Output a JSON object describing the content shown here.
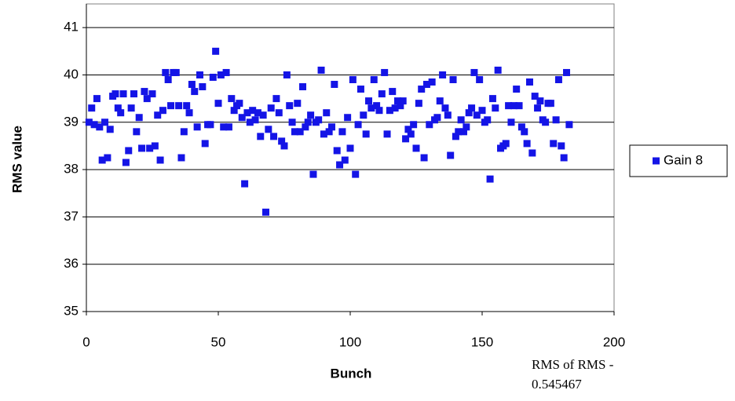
{
  "chart_data": {
    "type": "scatter",
    "x_label": "Bunch",
    "y_label": "RMS value",
    "annotation": [
      "RMS of RMS -",
      "0.545467"
    ],
    "xlim": [
      0,
      200
    ],
    "xticks": [
      0,
      50,
      100,
      150,
      200
    ],
    "ylim": [
      35,
      41.5
    ],
    "yticks": [
      35,
      36,
      37,
      38,
      39,
      40,
      41
    ],
    "grid": true,
    "legend": "right",
    "x": [
      1,
      2,
      3,
      4,
      5,
      6,
      7,
      8,
      9,
      10,
      11,
      12,
      13,
      14,
      15,
      16,
      17,
      18,
      19,
      20,
      21,
      22,
      23,
      24,
      25,
      26,
      27,
      28,
      29,
      30,
      31,
      32,
      33,
      34,
      35,
      36,
      37,
      38,
      39,
      40,
      41,
      42,
      43,
      44,
      45,
      46,
      47,
      48,
      49,
      50,
      51,
      52,
      53,
      54,
      55,
      56,
      57,
      58,
      59,
      60,
      61,
      62,
      63,
      64,
      65,
      66,
      67,
      68,
      69,
      70,
      71,
      72,
      73,
      74,
      75,
      76,
      77,
      78,
      79,
      80,
      81,
      82,
      83,
      84,
      85,
      86,
      87,
      88,
      89,
      90,
      91,
      92,
      93,
      94,
      95,
      96,
      97,
      98,
      99,
      100,
      101,
      102,
      103,
      104,
      105,
      106,
      107,
      108,
      109,
      110,
      111,
      112,
      113,
      114,
      115,
      116,
      117,
      118,
      119,
      120,
      121,
      122,
      123,
      124,
      125,
      126,
      127,
      128,
      129,
      130,
      131,
      132,
      133,
      134,
      135,
      136,
      137,
      138,
      139,
      140,
      141,
      142,
      143,
      144,
      145,
      146,
      147,
      148,
      149,
      150,
      151,
      152,
      153,
      154,
      155,
      156,
      157,
      158,
      159,
      160,
      161,
      162,
      163,
      164,
      165,
      166,
      167,
      168,
      169,
      170,
      171,
      172,
      173,
      174,
      175,
      176,
      177,
      178,
      179,
      180,
      181,
      182,
      183
    ],
    "series": [
      {
        "name": "Gain 8",
        "color": "#1414e6",
        "values": [
          39.0,
          39.3,
          38.95,
          39.5,
          38.9,
          38.2,
          39.0,
          38.25,
          38.85,
          39.55,
          39.6,
          39.3,
          39.2,
          39.6,
          38.15,
          38.4,
          39.3,
          39.6,
          38.8,
          39.1,
          38.45,
          39.65,
          39.5,
          38.45,
          39.6,
          38.5,
          39.15,
          38.2,
          39.25,
          40.05,
          39.9,
          39.35,
          40.05,
          40.05,
          39.35,
          38.25,
          38.8,
          39.35,
          39.2,
          39.8,
          39.65,
          38.9,
          40.0,
          39.75,
          38.55,
          38.95,
          38.95,
          39.95,
          40.5,
          39.4,
          40.0,
          38.9,
          40.05,
          38.9,
          39.5,
          39.25,
          39.35,
          39.4,
          39.1,
          37.7,
          39.2,
          39.0,
          39.25,
          39.05,
          39.2,
          38.7,
          39.15,
          37.1,
          38.85,
          39.3,
          38.7,
          39.5,
          39.2,
          38.6,
          38.5,
          40.0,
          39.35,
          39.0,
          38.8,
          39.4,
          38.8,
          39.75,
          38.9,
          39.0,
          39.15,
          37.9,
          39.0,
          39.05,
          40.1,
          38.75,
          39.2,
          38.8,
          38.9,
          39.8,
          38.4,
          38.1,
          38.8,
          38.2,
          39.1,
          38.45,
          39.9,
          37.9,
          38.95,
          39.7,
          39.15,
          38.75,
          39.45,
          39.3,
          39.9,
          39.35,
          39.25,
          39.6,
          40.05,
          38.75,
          39.25,
          39.65,
          39.3,
          39.45,
          39.35,
          39.45,
          38.65,
          38.85,
          38.75,
          38.95,
          38.45,
          39.4,
          39.7,
          38.25,
          39.8,
          38.95,
          39.85,
          39.05,
          39.1,
          39.45,
          40.0,
          39.3,
          39.15,
          38.3,
          39.9,
          38.7,
          38.8,
          39.05,
          38.8,
          38.9,
          39.2,
          39.3,
          40.05,
          39.15,
          39.9,
          39.25,
          39.0,
          39.05,
          37.8,
          39.5,
          39.3,
          40.1,
          38.45,
          38.5,
          38.55,
          39.35,
          39.0,
          39.35,
          39.7,
          39.35,
          38.9,
          38.8,
          38.55,
          39.85,
          38.35,
          39.55,
          39.3,
          39.45,
          39.05,
          39.0,
          39.4,
          39.4,
          38.55,
          39.05,
          39.9,
          38.5,
          38.25,
          40.05,
          38.95
        ]
      }
    ]
  }
}
